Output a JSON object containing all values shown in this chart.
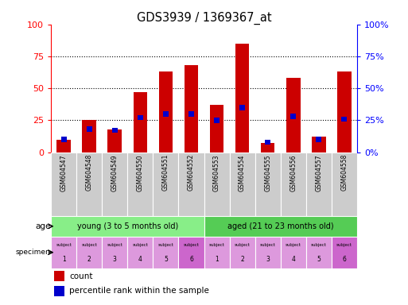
{
  "title": "GDS3939 / 1369367_at",
  "samples": [
    "GSM604547",
    "GSM604548",
    "GSM604549",
    "GSM604550",
    "GSM604551",
    "GSM604552",
    "GSM604553",
    "GSM604554",
    "GSM604555",
    "GSM604556",
    "GSM604557",
    "GSM604558"
  ],
  "count_values": [
    10,
    25,
    18,
    47,
    63,
    68,
    37,
    85,
    7,
    58,
    12,
    63
  ],
  "percentile_values": [
    10,
    18,
    17,
    27,
    30,
    30,
    25,
    35,
    8,
    28,
    10,
    26
  ],
  "bar_color": "#cc0000",
  "percentile_color": "#0000cc",
  "ylim": [
    0,
    100
  ],
  "yticks": [
    0,
    25,
    50,
    75,
    100
  ],
  "age_groups": [
    {
      "label": "young (3 to 5 months old)",
      "start": 0,
      "end": 6,
      "color": "#88ee88"
    },
    {
      "label": "aged (21 to 23 months old)",
      "start": 6,
      "end": 12,
      "color": "#55cc55"
    }
  ],
  "specimen_color_light": "#dd99dd",
  "specimen_color_dark": "#cc66cc",
  "tick_bg_color": "#cccccc",
  "bar_color_legend": "#cc0000",
  "pct_color_legend": "#0000cc"
}
